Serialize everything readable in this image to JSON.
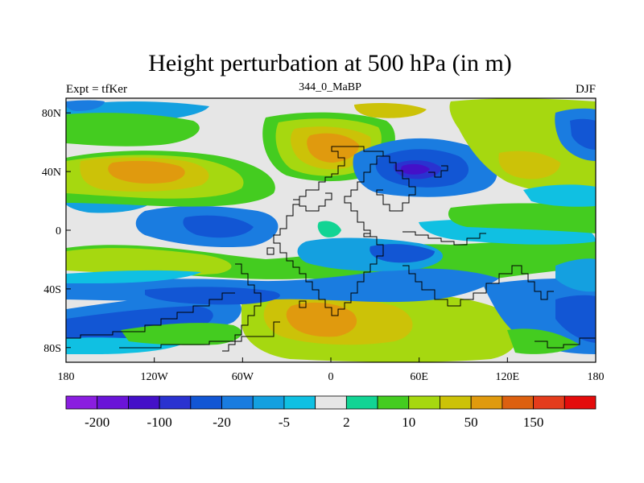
{
  "title": "Height perturbation at 500 hPa (in m)",
  "subtitle_left": "Expt = tfKer",
  "subtitle_center": "344_0_MaBP",
  "subtitle_right": "DJF",
  "map": {
    "lon_range": [
      -180,
      180
    ],
    "lat_range": [
      -90,
      90
    ],
    "lat_tick_labels": [
      "80N",
      "40N",
      "0",
      "40S",
      "80S"
    ],
    "lon_tick_labels": [
      "180",
      "120W",
      "60W",
      "0",
      "60E",
      "120E",
      "180"
    ],
    "coastline_color": "#000000"
  },
  "colorbar": {
    "colors": [
      "#8a1ee0",
      "#6a14d8",
      "#4410c8",
      "#2a32d0",
      "#1256d4",
      "#1a7ce0",
      "#14a0e0",
      "#10c0e2",
      "#e6e6e6",
      "#12d494",
      "#44cc20",
      "#a6d810",
      "#ccc208",
      "#e09a0e",
      "#dc6010",
      "#e43c1c",
      "#e40c0c"
    ],
    "labels": [
      "-200",
      "-100",
      "-20",
      "-5",
      "2",
      "10",
      "50",
      "150"
    ]
  },
  "field": {
    "background": "#e6e6e6",
    "colors": {
      "green": "#44cc20",
      "yellow_green": "#a6d810",
      "olive": "#ccc208",
      "orange": "#e09a0e",
      "teal": "#12d494",
      "cyan": "#10c0e2",
      "light_blue": "#14a0e0",
      "mid_blue": "#1a7ce0",
      "blue": "#1256d4",
      "dark_blue": "#2a32d0",
      "indigo": "#4410c8"
    }
  }
}
